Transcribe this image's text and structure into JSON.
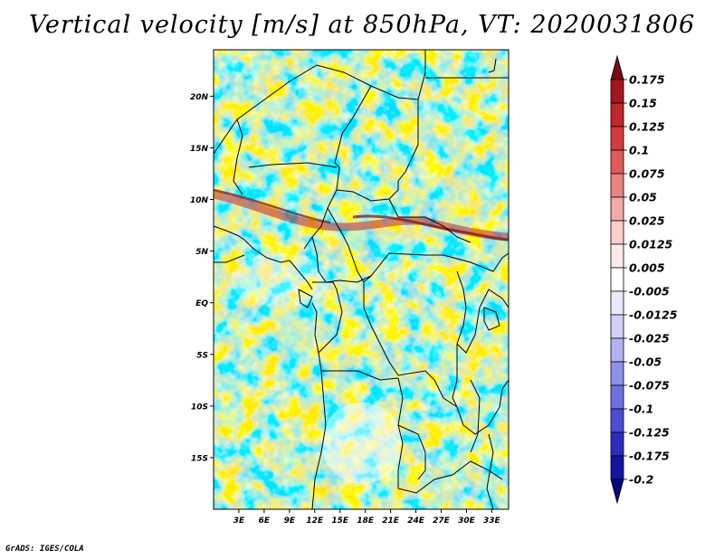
{
  "title": "Vertical velocity [m/s] at 850hPa, VT: 2020031806",
  "credit": "GrADS: IGES/COLA",
  "map": {
    "lat_labels": [
      "20N",
      "15N",
      "10N",
      "5N",
      "EQ",
      "5S",
      "10S",
      "15S"
    ],
    "lat_values": [
      20,
      15,
      10,
      5,
      0,
      -5,
      -10,
      -15
    ],
    "lon_labels": [
      "3E",
      "6E",
      "9E",
      "12E",
      "15E",
      "18E",
      "21E",
      "24E",
      "27E",
      "30E",
      "33E"
    ],
    "lon_values": [
      3,
      6,
      9,
      12,
      15,
      18,
      21,
      24,
      27,
      30,
      33
    ],
    "lat_range": [
      -20,
      24.5
    ],
    "lon_range": [
      0,
      35
    ]
  },
  "colorbar": {
    "labels": [
      "0.175",
      "0.15",
      "0.125",
      "0.1",
      "0.075",
      "0.05",
      "0.025",
      "0.0125",
      "0.005",
      "-0.005",
      "-0.0125",
      "-0.025",
      "-0.05",
      "-0.075",
      "-0.1",
      "-0.125",
      "-0.175",
      "-0.2"
    ],
    "colors": [
      "#7a0a10",
      "#a6141c",
      "#c0262a",
      "#d33c3a",
      "#e05c58",
      "#e98480",
      "#f2aaa6",
      "#f8cdcb",
      "#fceae9",
      "#ffffff",
      "#e9e9fc",
      "#cfcff7",
      "#b2b2f2",
      "#9090ec",
      "#6f6fe3",
      "#4c4cd6",
      "#2c2cbf",
      "#1414a3",
      "#050585"
    ]
  }
}
